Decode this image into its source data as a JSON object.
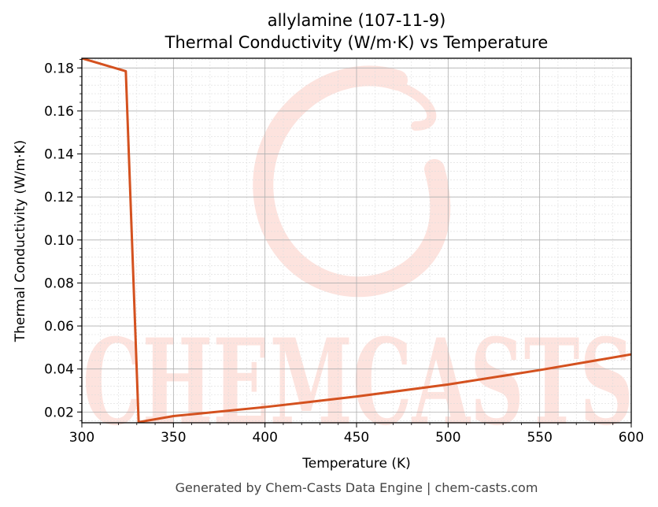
{
  "chart_data": {
    "type": "line",
    "title_line1": "allylamine (107-11-9)",
    "title_line2": "Thermal Conductivity (W/m·K) vs Temperature",
    "xlabel": "Temperature (K)",
    "ylabel": "Thermal Conductivity (W/m·K)",
    "xlim": [
      300,
      600
    ],
    "ylim": [
      0.015,
      0.1845
    ],
    "xticks": [
      300,
      350,
      400,
      450,
      500,
      550,
      600
    ],
    "yticks": [
      0.02,
      0.04,
      0.06,
      0.08,
      0.1,
      0.12,
      0.14,
      0.16,
      0.18
    ],
    "grid": true,
    "series": [
      {
        "color": "#d4511f",
        "x": [
          300,
          324,
          331,
          350,
          400,
          450,
          500,
          550,
          600
        ],
        "y": [
          0.1845,
          0.1785,
          0.0153,
          0.0181,
          0.0223,
          0.0272,
          0.0328,
          0.0395,
          0.0468
        ]
      }
    ]
  },
  "watermark": {
    "text": "CHEMCASTS",
    "color": "#fde3de"
  },
  "footer": "Generated by Chem-Casts Data Engine | chem-casts.com"
}
